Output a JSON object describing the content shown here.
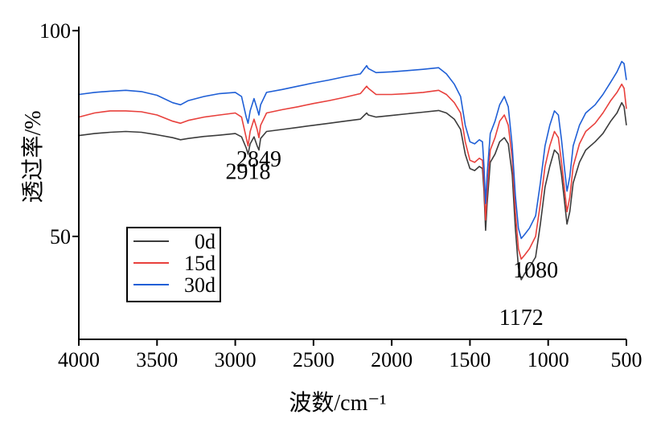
{
  "chart_data": {
    "type": "line",
    "xlabel": "波数/cm⁻¹",
    "ylabel": "透过率/%",
    "xlim": [
      4000,
      500
    ],
    "ylim": [
      25,
      101
    ],
    "x_ticks": [
      4000,
      3500,
      3000,
      2500,
      2000,
      1500,
      1000,
      500
    ],
    "x_tick_labels": [
      "4000",
      "3500",
      "3000",
      "2500",
      "2000",
      "1500",
      "1000",
      "500"
    ],
    "y_ticks": [
      50,
      100
    ],
    "y_tick_labels": [
      "50",
      "100"
    ],
    "grid": false,
    "legend_position": "lower-left",
    "series": [
      {
        "name": "0d",
        "color": "#3c3c3c",
        "points": [
          [
            4000,
            74.5
          ],
          [
            3900,
            75.0
          ],
          [
            3800,
            75.3
          ],
          [
            3700,
            75.5
          ],
          [
            3600,
            75.3
          ],
          [
            3500,
            74.7
          ],
          [
            3400,
            74.0
          ],
          [
            3350,
            73.5
          ],
          [
            3300,
            73.8
          ],
          [
            3200,
            74.3
          ],
          [
            3100,
            74.6
          ],
          [
            3000,
            75.0
          ],
          [
            2960,
            74.2
          ],
          [
            2930,
            71.5
          ],
          [
            2918,
            70.0
          ],
          [
            2905,
            72.5
          ],
          [
            2880,
            74.2
          ],
          [
            2860,
            72.0
          ],
          [
            2849,
            71.0
          ],
          [
            2838,
            73.8
          ],
          [
            2800,
            75.5
          ],
          [
            2700,
            76.0
          ],
          [
            2600,
            76.5
          ],
          [
            2500,
            77.0
          ],
          [
            2400,
            77.5
          ],
          [
            2300,
            78.0
          ],
          [
            2200,
            78.5
          ],
          [
            2160,
            80.0
          ],
          [
            2150,
            79.5
          ],
          [
            2100,
            79.0
          ],
          [
            2000,
            79.4
          ],
          [
            1900,
            79.8
          ],
          [
            1800,
            80.2
          ],
          [
            1700,
            80.6
          ],
          [
            1650,
            80.0
          ],
          [
            1600,
            78.5
          ],
          [
            1560,
            76.0
          ],
          [
            1530,
            70.0
          ],
          [
            1500,
            66.5
          ],
          [
            1470,
            66.0
          ],
          [
            1440,
            67.0
          ],
          [
            1420,
            66.5
          ],
          [
            1410,
            61.0
          ],
          [
            1400,
            51.5
          ],
          [
            1390,
            58.0
          ],
          [
            1370,
            68.0
          ],
          [
            1340,
            70.0
          ],
          [
            1310,
            73.0
          ],
          [
            1280,
            74.0
          ],
          [
            1255,
            72.5
          ],
          [
            1230,
            65.0
          ],
          [
            1210,
            52.0
          ],
          [
            1190,
            42.5
          ],
          [
            1172,
            39.5
          ],
          [
            1150,
            41.0
          ],
          [
            1120,
            42.5
          ],
          [
            1080,
            45.0
          ],
          [
            1050,
            53.0
          ],
          [
            1020,
            62.0
          ],
          [
            990,
            67.0
          ],
          [
            960,
            71.0
          ],
          [
            935,
            70.0
          ],
          [
            915,
            65.0
          ],
          [
            900,
            60.0
          ],
          [
            880,
            53.0
          ],
          [
            862,
            56.0
          ],
          [
            840,
            63.0
          ],
          [
            800,
            68.0
          ],
          [
            760,
            71.0
          ],
          [
            700,
            73.0
          ],
          [
            650,
            75.0
          ],
          [
            600,
            78.0
          ],
          [
            560,
            80.0
          ],
          [
            530,
            82.5
          ],
          [
            515,
            81.5
          ],
          [
            500,
            77.0
          ]
        ]
      },
      {
        "name": "15d",
        "color": "#e8403c",
        "points": [
          [
            4000,
            79.0
          ],
          [
            3900,
            80.0
          ],
          [
            3800,
            80.5
          ],
          [
            3700,
            80.5
          ],
          [
            3600,
            80.3
          ],
          [
            3500,
            79.5
          ],
          [
            3400,
            78.0
          ],
          [
            3350,
            77.5
          ],
          [
            3300,
            78.2
          ],
          [
            3200,
            79.0
          ],
          [
            3100,
            79.5
          ],
          [
            3000,
            80.0
          ],
          [
            2960,
            79.0
          ],
          [
            2930,
            74.0
          ],
          [
            2918,
            72.0
          ],
          [
            2905,
            75.5
          ],
          [
            2880,
            78.5
          ],
          [
            2860,
            76.0
          ],
          [
            2849,
            74.0
          ],
          [
            2838,
            77.0
          ],
          [
            2800,
            80.0
          ],
          [
            2700,
            80.8
          ],
          [
            2600,
            81.5
          ],
          [
            2500,
            82.3
          ],
          [
            2400,
            83.0
          ],
          [
            2300,
            83.8
          ],
          [
            2200,
            84.7
          ],
          [
            2160,
            86.5
          ],
          [
            2150,
            86.0
          ],
          [
            2100,
            84.5
          ],
          [
            2000,
            84.5
          ],
          [
            1900,
            84.7
          ],
          [
            1800,
            85.0
          ],
          [
            1700,
            85.5
          ],
          [
            1650,
            84.5
          ],
          [
            1600,
            82.5
          ],
          [
            1560,
            80.0
          ],
          [
            1530,
            73.0
          ],
          [
            1500,
            68.5
          ],
          [
            1470,
            68.0
          ],
          [
            1440,
            69.0
          ],
          [
            1420,
            68.5
          ],
          [
            1410,
            63.0
          ],
          [
            1400,
            54.0
          ],
          [
            1390,
            61.0
          ],
          [
            1370,
            71.0
          ],
          [
            1340,
            74.0
          ],
          [
            1310,
            78.0
          ],
          [
            1280,
            79.5
          ],
          [
            1255,
            77.0
          ],
          [
            1230,
            69.0
          ],
          [
            1210,
            56.0
          ],
          [
            1190,
            47.0
          ],
          [
            1172,
            44.5
          ],
          [
            1150,
            45.5
          ],
          [
            1120,
            47.0
          ],
          [
            1080,
            50.0
          ],
          [
            1050,
            58.0
          ],
          [
            1020,
            67.0
          ],
          [
            990,
            72.0
          ],
          [
            960,
            75.5
          ],
          [
            935,
            74.0
          ],
          [
            915,
            68.0
          ],
          [
            900,
            63.0
          ],
          [
            880,
            56.0
          ],
          [
            862,
            59.5
          ],
          [
            840,
            67.0
          ],
          [
            800,
            72.5
          ],
          [
            760,
            75.5
          ],
          [
            700,
            77.5
          ],
          [
            650,
            80.0
          ],
          [
            600,
            83.0
          ],
          [
            560,
            85.0
          ],
          [
            530,
            87.0
          ],
          [
            515,
            86.0
          ],
          [
            500,
            81.0
          ]
        ]
      },
      {
        "name": "30d",
        "color": "#1f5fd6",
        "points": [
          [
            4000,
            84.5
          ],
          [
            3900,
            85.0
          ],
          [
            3800,
            85.3
          ],
          [
            3700,
            85.5
          ],
          [
            3600,
            85.2
          ],
          [
            3500,
            84.3
          ],
          [
            3400,
            82.5
          ],
          [
            3350,
            82.0
          ],
          [
            3300,
            83.0
          ],
          [
            3200,
            84.0
          ],
          [
            3100,
            84.7
          ],
          [
            3000,
            85.0
          ],
          [
            2960,
            84.0
          ],
          [
            2930,
            79.0
          ],
          [
            2918,
            77.5
          ],
          [
            2905,
            80.5
          ],
          [
            2880,
            83.5
          ],
          [
            2860,
            81.0
          ],
          [
            2849,
            79.5
          ],
          [
            2838,
            82.0
          ],
          [
            2800,
            85.0
          ],
          [
            2700,
            85.7
          ],
          [
            2600,
            86.5
          ],
          [
            2500,
            87.3
          ],
          [
            2400,
            88.0
          ],
          [
            2300,
            88.8
          ],
          [
            2200,
            89.5
          ],
          [
            2160,
            91.5
          ],
          [
            2150,
            90.8
          ],
          [
            2100,
            89.8
          ],
          [
            2000,
            90.0
          ],
          [
            1900,
            90.3
          ],
          [
            1800,
            90.6
          ],
          [
            1700,
            91.0
          ],
          [
            1650,
            89.5
          ],
          [
            1600,
            87.0
          ],
          [
            1560,
            84.0
          ],
          [
            1530,
            77.0
          ],
          [
            1500,
            73.0
          ],
          [
            1470,
            72.5
          ],
          [
            1440,
            73.5
          ],
          [
            1420,
            73.0
          ],
          [
            1410,
            67.0
          ],
          [
            1400,
            58.0
          ],
          [
            1390,
            65.0
          ],
          [
            1370,
            75.0
          ],
          [
            1340,
            78.0
          ],
          [
            1310,
            82.0
          ],
          [
            1280,
            84.0
          ],
          [
            1255,
            81.5
          ],
          [
            1230,
            72.0
          ],
          [
            1210,
            60.0
          ],
          [
            1190,
            52.0
          ],
          [
            1172,
            49.5
          ],
          [
            1150,
            50.5
          ],
          [
            1120,
            52.0
          ],
          [
            1080,
            55.0
          ],
          [
            1050,
            63.0
          ],
          [
            1020,
            72.0
          ],
          [
            990,
            77.0
          ],
          [
            960,
            80.5
          ],
          [
            935,
            79.5
          ],
          [
            915,
            73.5
          ],
          [
            900,
            68.0
          ],
          [
            880,
            61.0
          ],
          [
            862,
            64.5
          ],
          [
            840,
            72.0
          ],
          [
            800,
            77.0
          ],
          [
            760,
            80.0
          ],
          [
            700,
            82.0
          ],
          [
            650,
            84.5
          ],
          [
            600,
            87.5
          ],
          [
            560,
            90.0
          ],
          [
            530,
            92.5
          ],
          [
            515,
            92.0
          ],
          [
            500,
            88.0
          ]
        ]
      }
    ],
    "annotations": [
      {
        "text": "2918",
        "x": 2918,
        "y": 64
      },
      {
        "text": "2849",
        "x": 2849,
        "y": 67
      },
      {
        "text": "1172",
        "x": 1172,
        "y": 28.5
      },
      {
        "text": "1080",
        "x": 1080,
        "y": 40
      }
    ]
  }
}
